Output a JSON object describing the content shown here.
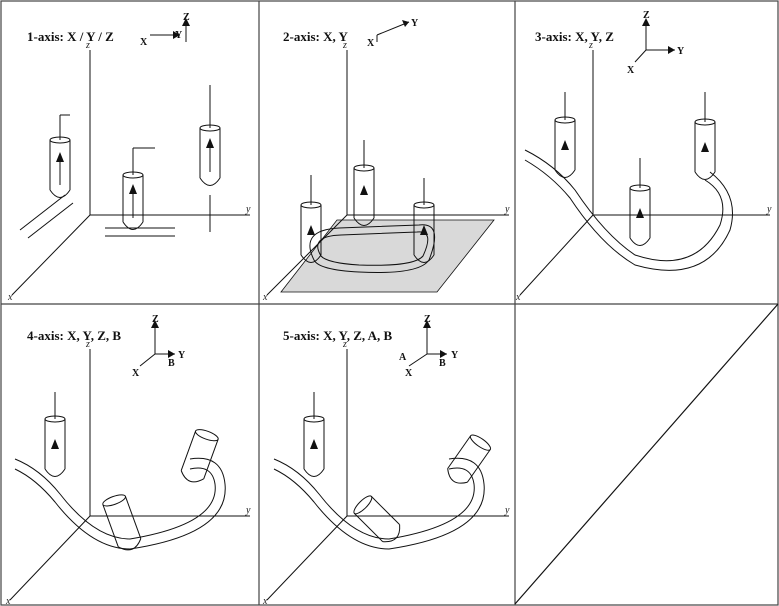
{
  "panels": [
    {
      "id": "p1",
      "prefix": "1-axis:",
      "rest": " X / Y / Z",
      "frame_labels": [
        "Z",
        "X",
        "Y"
      ]
    },
    {
      "id": "p2",
      "prefix": "2-axis:",
      "rest": " X, Y",
      "frame_labels": [
        "X",
        "Y"
      ]
    },
    {
      "id": "p3",
      "prefix": "3-axis:",
      "rest": " X, Y, Z",
      "frame_labels": [
        "Z",
        "X",
        "Y"
      ]
    },
    {
      "id": "p4",
      "prefix": "4-axis:",
      "rest": " X, Y, Z, B",
      "frame_labels": [
        "Z",
        "X",
        "Y",
        "B"
      ]
    },
    {
      "id": "p5",
      "prefix": "5-axis:",
      "rest": " X, Y, Z, A, B",
      "frame_labels": [
        "Z",
        "X",
        "Y",
        "A",
        "B"
      ]
    }
  ],
  "axis_labels": {
    "x": "x",
    "y": "y",
    "z": "z"
  },
  "colors": {
    "line": "#111111",
    "plane": "#d9d9d9",
    "border": "#444444"
  }
}
